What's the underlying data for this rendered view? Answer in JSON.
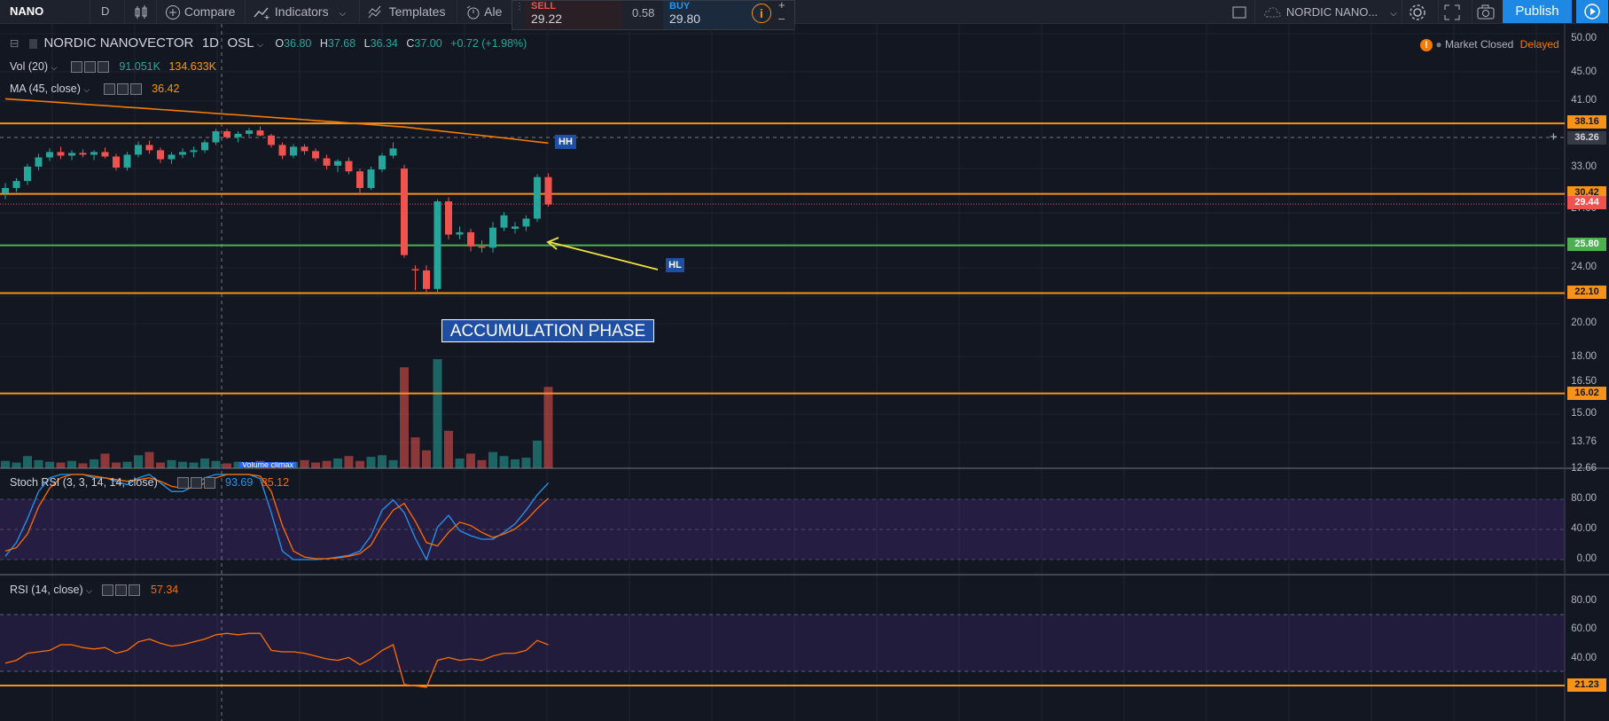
{
  "toolbar": {
    "symbol": "NANO",
    "interval": "D",
    "compare": "Compare",
    "indicators": "Indicators",
    "templates": "Templates",
    "alert": "Ale",
    "sell_label": "SELL",
    "sell_price": "29.22",
    "spread": "0.58",
    "buy_label": "BUY",
    "buy_price": "29.80",
    "layout_name": "NORDIC NANO...",
    "publish": "Publish"
  },
  "legend": {
    "title": "NORDIC NANOVECTOR",
    "interval": "1D",
    "exchange": "OSL",
    "open_label": "O",
    "open": "36.80",
    "high_label": "H",
    "high": "37.68",
    "low_label": "L",
    "low": "36.34",
    "close_label": "C",
    "close": "37.00",
    "change": "+0.72 (+1.98%)",
    "vol_name": "Vol (20)",
    "vol_value": "91.051K",
    "vol_ma": "134.633K",
    "ma_name": "MA (45, close)",
    "ma_value": "36.42",
    "stoch_name": "Stoch RSI (3, 3, 14, 14, close)",
    "stoch_k": "93.69",
    "stoch_d": "85.12",
    "rsi_name": "RSI (14, close)",
    "rsi_value": "57.34",
    "market_status": "Market Closed",
    "delayed": "Delayed",
    "volume_tag": "Volume climax"
  },
  "annotations": {
    "hh": "HH",
    "hl": "HL",
    "phase": "ACCUMULATION PHASE"
  },
  "price_axis": [
    "50.00",
    "45.00",
    "41.00",
    "33.00",
    "27.00",
    "24.00",
    "22.00",
    "20.00",
    "18.00",
    "16.50",
    "15.00",
    "13.76",
    "12.66"
  ],
  "price_tags": {
    "r1": "38.16",
    "cross": "36.26",
    "r2": "30.42",
    "last": "29.44",
    "support": "25.80",
    "s2": "22.10",
    "s3": "16.02",
    "rsi_line": "21.23"
  },
  "stoch_axis": [
    "80.00",
    "40.00",
    "0.00"
  ],
  "rsi_axis": [
    "80.00",
    "60.00",
    "40.00"
  ],
  "colors": {
    "bg": "#131722",
    "up": "#26a69a",
    "down": "#ef5350",
    "orange": "#f7931a",
    "green_line": "#4caf50",
    "stoch_k": "#2196f3",
    "stoch_d": "#ff6d00",
    "label_blue": "#1e4fa3"
  },
  "chart_data": {
    "type": "candlestick",
    "horizontal_levels": [
      38.16,
      30.42,
      25.8,
      22.1,
      16.02
    ],
    "ma_end": 36.42,
    "ohlc": [
      [
        30.5,
        31.5,
        29.9,
        31.0
      ],
      [
        31.0,
        32.0,
        30.6,
        31.7
      ],
      [
        31.7,
        33.5,
        31.3,
        33.2
      ],
      [
        33.2,
        34.6,
        32.8,
        34.2
      ],
      [
        34.2,
        35.2,
        33.8,
        34.8
      ],
      [
        34.8,
        35.4,
        34.0,
        34.4
      ],
      [
        34.4,
        35.0,
        33.9,
        34.7
      ],
      [
        34.7,
        35.1,
        34.2,
        34.5
      ],
      [
        34.5,
        35.0,
        33.9,
        34.8
      ],
      [
        34.8,
        35.3,
        34.1,
        34.3
      ],
      [
        34.3,
        34.6,
        32.8,
        33.1
      ],
      [
        33.1,
        34.8,
        32.8,
        34.5
      ],
      [
        34.5,
        36.0,
        34.2,
        35.6
      ],
      [
        35.6,
        36.1,
        34.6,
        35.0
      ],
      [
        35.0,
        35.3,
        33.6,
        34.0
      ],
      [
        34.0,
        34.8,
        33.5,
        34.5
      ],
      [
        34.5,
        35.2,
        34.1,
        34.8
      ],
      [
        34.8,
        35.4,
        34.2,
        35.0
      ],
      [
        35.0,
        36.2,
        34.7,
        35.9
      ],
      [
        35.9,
        37.5,
        35.6,
        37.2
      ],
      [
        37.2,
        37.5,
        36.3,
        36.5
      ],
      [
        36.5,
        37.2,
        35.9,
        36.9
      ],
      [
        36.9,
        37.6,
        36.6,
        37.3
      ],
      [
        37.3,
        37.8,
        36.6,
        36.7
      ],
      [
        36.7,
        36.9,
        35.3,
        35.6
      ],
      [
        35.6,
        35.9,
        34.0,
        34.4
      ],
      [
        34.4,
        35.7,
        34.1,
        35.4
      ],
      [
        35.4,
        35.7,
        34.5,
        34.9
      ],
      [
        34.9,
        35.2,
        33.8,
        34.1
      ],
      [
        34.1,
        34.5,
        32.9,
        33.3
      ],
      [
        33.3,
        34.0,
        32.6,
        33.8
      ],
      [
        33.8,
        34.2,
        32.4,
        32.7
      ],
      [
        32.7,
        33.0,
        30.3,
        31.0
      ],
      [
        31.0,
        33.2,
        30.8,
        32.9
      ],
      [
        32.9,
        34.7,
        32.6,
        34.4
      ],
      [
        34.4,
        35.9,
        34.1,
        35.2
      ],
      [
        33.0,
        33.4,
        24.8,
        25.0
      ],
      [
        23.9,
        24.2,
        22.3,
        23.8
      ],
      [
        23.8,
        24.2,
        22.0,
        22.4
      ],
      [
        22.4,
        29.9,
        22.1,
        29.7
      ],
      [
        29.7,
        30.1,
        26.3,
        26.7
      ],
      [
        26.7,
        27.4,
        26.3,
        26.9
      ],
      [
        26.9,
        27.2,
        25.3,
        25.7
      ],
      [
        25.7,
        26.2,
        25.2,
        25.6
      ],
      [
        25.6,
        27.8,
        25.2,
        27.3
      ],
      [
        27.3,
        28.7,
        27.0,
        28.4
      ],
      [
        27.2,
        27.8,
        26.8,
        27.4
      ],
      [
        27.4,
        28.4,
        27.0,
        28.1
      ],
      [
        28.1,
        32.4,
        27.8,
        32.1
      ],
      [
        32.1,
        32.5,
        29.2,
        29.4
      ]
    ],
    "volume": [
      0.9,
      0.7,
      1.5,
      1.0,
      0.8,
      0.7,
      0.9,
      0.6,
      1.1,
      1.8,
      0.7,
      0.8,
      1.6,
      2.0,
      0.7,
      1.0,
      0.8,
      0.7,
      1.2,
      0.9,
      0.6,
      0.8,
      0.7,
      0.9,
      0.7,
      0.6,
      0.8,
      1.0,
      0.7,
      0.9,
      1.2,
      1.5,
      0.9,
      1.4,
      1.6,
      1.0,
      12.4,
      3.8,
      2.2,
      13.4,
      4.6,
      1.2,
      1.8,
      1.0,
      2.0,
      1.5,
      1.1,
      1.3,
      3.4,
      10.0
    ],
    "stoch_k": [
      4,
      20,
      48,
      80,
      96,
      100,
      100,
      100,
      96,
      96,
      92,
      88,
      96,
      100,
      90,
      80,
      80,
      86,
      96,
      100,
      100,
      100,
      100,
      95,
      55,
      10,
      0,
      0,
      0,
      1,
      3,
      5,
      10,
      28,
      58,
      70,
      55,
      25,
      0,
      38,
      52,
      34,
      28,
      24,
      24,
      32,
      42,
      58,
      76,
      90
    ],
    "stoch_d": [
      10,
      14,
      30,
      62,
      84,
      96,
      100,
      100,
      98,
      96,
      94,
      92,
      94,
      96,
      92,
      86,
      84,
      84,
      90,
      96,
      100,
      100,
      100,
      98,
      80,
      40,
      10,
      3,
      1,
      1,
      2,
      4,
      7,
      17,
      40,
      58,
      66,
      45,
      20,
      16,
      32,
      44,
      40,
      32,
      26,
      30,
      36,
      46,
      60,
      72
    ],
    "rsi": [
      37,
      39,
      44,
      45,
      46,
      50,
      50,
      48,
      47,
      48,
      44,
      46,
      52,
      54,
      51,
      49,
      50,
      52,
      54,
      57,
      58,
      57,
      58,
      58,
      46,
      45,
      45,
      44,
      42,
      40,
      39,
      41,
      36,
      40,
      46,
      50,
      22,
      21,
      20,
      39,
      41,
      39,
      40,
      39,
      42,
      44,
      44,
      46,
      53,
      50
    ]
  }
}
